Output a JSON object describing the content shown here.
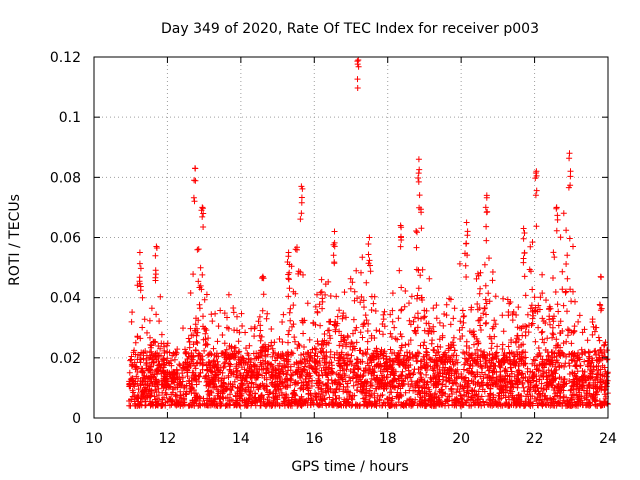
{
  "chart_data": {
    "type": "scatter",
    "title": "Day 349 of 2020, Rate Of TEC Index for receiver p003",
    "xlabel": "GPS time / hours",
    "ylabel": "ROTI / TECUs",
    "xlim": [
      10,
      24
    ],
    "ylim": [
      0,
      0.12
    ],
    "xticks": [
      10,
      12,
      14,
      16,
      18,
      20,
      22,
      24
    ],
    "xtick_labels": [
      "10",
      "12",
      "14",
      "16",
      "18",
      "20",
      "22",
      "24"
    ],
    "yticks": [
      0,
      0.02,
      0.04,
      0.06,
      0.08,
      0.1,
      0.12
    ],
    "ytick_labels": [
      "0",
      "0.02",
      "0.04",
      "0.06",
      "0.08",
      "0.1",
      "0.12"
    ],
    "grid": true,
    "marker": "+",
    "series_color": "#ff0000",
    "data_x_start": 10.95,
    "data_x_end": 24.0,
    "notable_points": [
      {
        "x": 17.2,
        "y": 0.119
      },
      {
        "x": 22.95,
        "y": 0.088
      },
      {
        "x": 18.85,
        "y": 0.086
      },
      {
        "x": 12.75,
        "y": 0.083
      },
      {
        "x": 22.05,
        "y": 0.082
      },
      {
        "x": 15.65,
        "y": 0.077
      },
      {
        "x": 20.7,
        "y": 0.074
      },
      {
        "x": 12.95,
        "y": 0.07
      },
      {
        "x": 22.6,
        "y": 0.07
      },
      {
        "x": 20.15,
        "y": 0.065
      },
      {
        "x": 18.35,
        "y": 0.064
      },
      {
        "x": 21.7,
        "y": 0.063
      },
      {
        "x": 16.55,
        "y": 0.062
      },
      {
        "x": 17.5,
        "y": 0.06
      },
      {
        "x": 11.7,
        "y": 0.057
      },
      {
        "x": 11.25,
        "y": 0.055
      },
      {
        "x": 15.3,
        "y": 0.055
      },
      {
        "x": 14.6,
        "y": 0.047
      },
      {
        "x": 16.2,
        "y": 0.046
      },
      {
        "x": 23.8,
        "y": 0.047
      }
    ],
    "envelope": [
      {
        "x": 11.0,
        "top": 0.036
      },
      {
        "x": 11.25,
        "top": 0.05
      },
      {
        "x": 11.5,
        "top": 0.035
      },
      {
        "x": 11.7,
        "top": 0.05
      },
      {
        "x": 12.0,
        "top": 0.025
      },
      {
        "x": 12.3,
        "top": 0.028
      },
      {
        "x": 12.5,
        "top": 0.035
      },
      {
        "x": 12.9,
        "top": 0.065
      },
      {
        "x": 13.2,
        "top": 0.035
      },
      {
        "x": 13.5,
        "top": 0.036
      },
      {
        "x": 13.8,
        "top": 0.045
      },
      {
        "x": 14.1,
        "top": 0.032
      },
      {
        "x": 14.4,
        "top": 0.033
      },
      {
        "x": 14.7,
        "top": 0.045
      },
      {
        "x": 15.0,
        "top": 0.022
      },
      {
        "x": 15.3,
        "top": 0.05
      },
      {
        "x": 15.6,
        "top": 0.065
      },
      {
        "x": 15.9,
        "top": 0.04
      },
      {
        "x": 16.2,
        "top": 0.042
      },
      {
        "x": 16.5,
        "top": 0.06
      },
      {
        "x": 16.8,
        "top": 0.045
      },
      {
        "x": 17.1,
        "top": 0.05
      },
      {
        "x": 17.4,
        "top": 0.057
      },
      {
        "x": 17.7,
        "top": 0.04
      },
      {
        "x": 18.0,
        "top": 0.036
      },
      {
        "x": 18.3,
        "top": 0.05
      },
      {
        "x": 18.6,
        "top": 0.04
      },
      {
        "x": 18.85,
        "top": 0.075
      },
      {
        "x": 19.2,
        "top": 0.04
      },
      {
        "x": 19.5,
        "top": 0.035
      },
      {
        "x": 19.8,
        "top": 0.045
      },
      {
        "x": 20.1,
        "top": 0.058
      },
      {
        "x": 20.4,
        "top": 0.045
      },
      {
        "x": 20.7,
        "top": 0.068
      },
      {
        "x": 21.0,
        "top": 0.04
      },
      {
        "x": 21.3,
        "top": 0.042
      },
      {
        "x": 21.6,
        "top": 0.05
      },
      {
        "x": 21.8,
        "top": 0.06
      },
      {
        "x": 22.0,
        "top": 0.072
      },
      {
        "x": 22.3,
        "top": 0.04
      },
      {
        "x": 22.6,
        "top": 0.065
      },
      {
        "x": 22.9,
        "top": 0.078
      },
      {
        "x": 23.2,
        "top": 0.04
      },
      {
        "x": 23.5,
        "top": 0.035
      },
      {
        "x": 23.8,
        "top": 0.04
      },
      {
        "x": 24.0,
        "top": 0.022
      }
    ],
    "baseline": {
      "min": 0.004,
      "median": 0.01
    }
  }
}
